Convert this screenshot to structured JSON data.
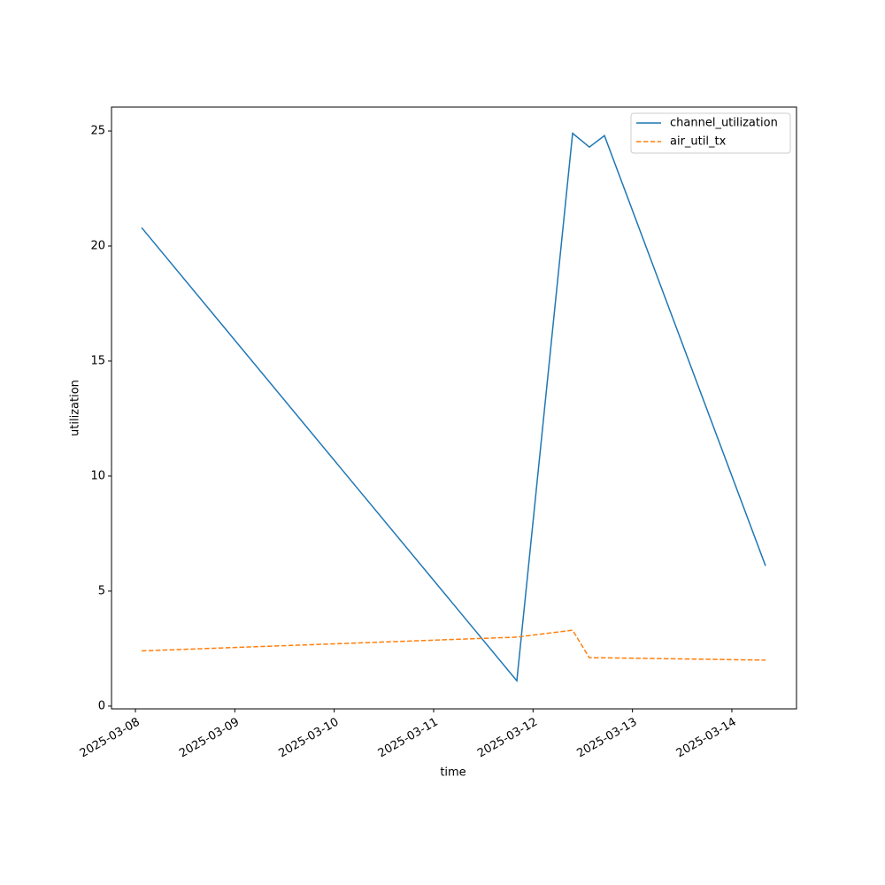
{
  "chart_data": {
    "type": "line",
    "x_label": "time",
    "y_label": "utilization",
    "x": [
      "2025-03-08T01:30",
      "2025-03-11T20:05",
      "2025-03-12T09:33",
      "2025-03-12T13:36",
      "2025-03-12T17:14",
      "2025-03-14T08:07"
    ],
    "series": [
      {
        "name": "channel_utilization",
        "color": "#1f77b4",
        "dash": false,
        "values": [
          20.8,
          1.1,
          24.9,
          24.3,
          24.8,
          6.1
        ]
      },
      {
        "name": "air_util_tx",
        "color": "#ff7f0e",
        "dash": true,
        "values": [
          2.4,
          3.0,
          3.3,
          2.1,
          2.1,
          2.0
        ]
      }
    ],
    "xlim": [
      "2025-03-07T18:14",
      "2025-03-14T15:36"
    ],
    "xticks": [
      "2025-03-08",
      "2025-03-09",
      "2025-03-10",
      "2025-03-11",
      "2025-03-12",
      "2025-03-13",
      "2025-03-14"
    ],
    "ylim": [
      -0.12,
      26.04
    ],
    "yticks": [
      0,
      5,
      10,
      15,
      20,
      25
    ],
    "legend": "upper right",
    "grid": false
  }
}
